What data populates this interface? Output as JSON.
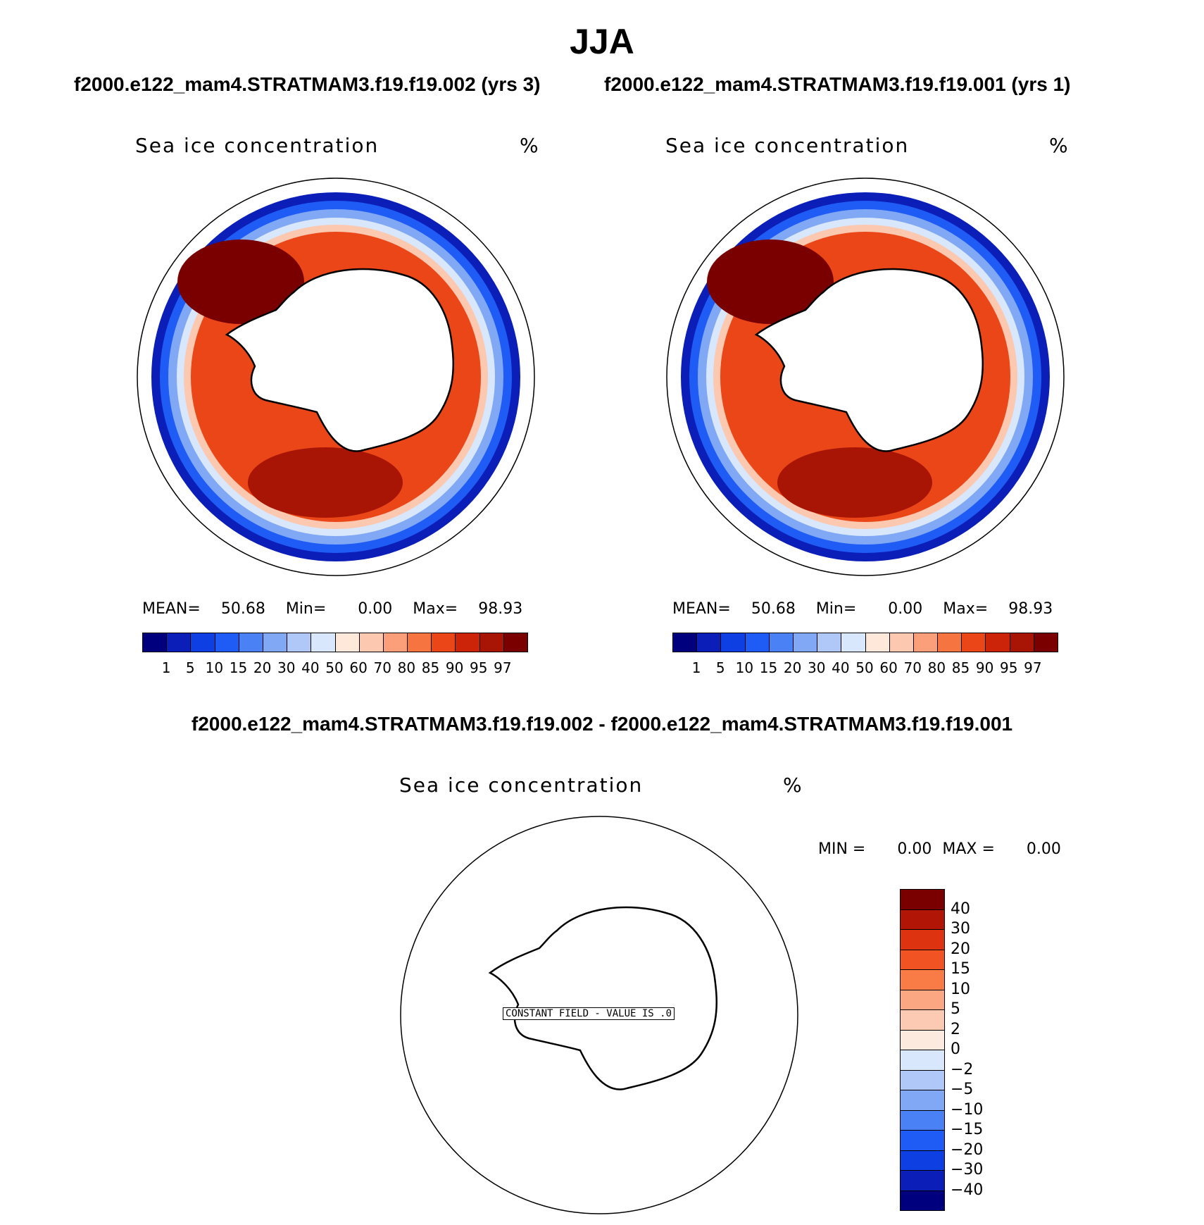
{
  "title": "JJA",
  "panels": [
    {
      "case_title": "f2000.e122_mam4.STRATMAM3.f19.f19.002 (yrs 3)",
      "variable": "Sea ice concentration",
      "units": "%",
      "stats": {
        "mean_label": "MEAN=",
        "mean": "50.68",
        "min_label": "Min=",
        "min": "0.00",
        "max_label": "Max=",
        "max": "98.93"
      },
      "colorbar_ticks": [
        "1",
        "5",
        "10",
        "15",
        "20",
        "30",
        "40",
        "50",
        "60",
        "70",
        "80",
        "85",
        "90",
        "95",
        "97"
      ]
    },
    {
      "case_title": "f2000.e122_mam4.STRATMAM3.f19.f19.001 (yrs 1)",
      "variable": "Sea ice concentration",
      "units": "%",
      "stats": {
        "mean_label": "MEAN=",
        "mean": "50.68",
        "min_label": "Min=",
        "min": "0.00",
        "max_label": "Max=",
        "max": "98.93"
      },
      "colorbar_ticks": [
        "1",
        "5",
        "10",
        "15",
        "20",
        "30",
        "40",
        "50",
        "60",
        "70",
        "80",
        "85",
        "90",
        "95",
        "97"
      ]
    }
  ],
  "difference": {
    "title": "f2000.e122_mam4.STRATMAM3.f19.f19.002 - f2000.e122_mam4.STRATMAM3.f19.f19.001",
    "variable": "Sea ice concentration",
    "units": "%",
    "min_label": "MIN =",
    "min": "0.00",
    "max_label": "MAX =",
    "max": "0.00",
    "constant_field_label": "CONSTANT FIELD - VALUE IS .0",
    "colorbar_ticks": [
      "40",
      "30",
      "20",
      "15",
      "10",
      "5",
      "2",
      "0",
      "−2",
      "−5",
      "−10",
      "−15",
      "−20",
      "−30",
      "−40"
    ]
  },
  "colors": {
    "field_scale": [
      "#00007f",
      "#0b1fb8",
      "#0d3fe2",
      "#1f5cf5",
      "#4a82f5",
      "#80a8f5",
      "#b0c8f7",
      "#d8e7fb",
      "#fde8da",
      "#fcc8b0",
      "#fb9f7a",
      "#f6743f",
      "#ea4618",
      "#cc2408",
      "#a81505",
      "#7a0000"
    ],
    "diff_scale": [
      "#7a0000",
      "#b01505",
      "#de3310",
      "#f25322",
      "#f97c47",
      "#fba882",
      "#fcc9b2",
      "#fdeade",
      "#d8e7fb",
      "#b0c8f7",
      "#80a8f5",
      "#4a82f5",
      "#1f5cf5",
      "#0d3fe2",
      "#0b1fb8",
      "#00007f"
    ]
  }
}
